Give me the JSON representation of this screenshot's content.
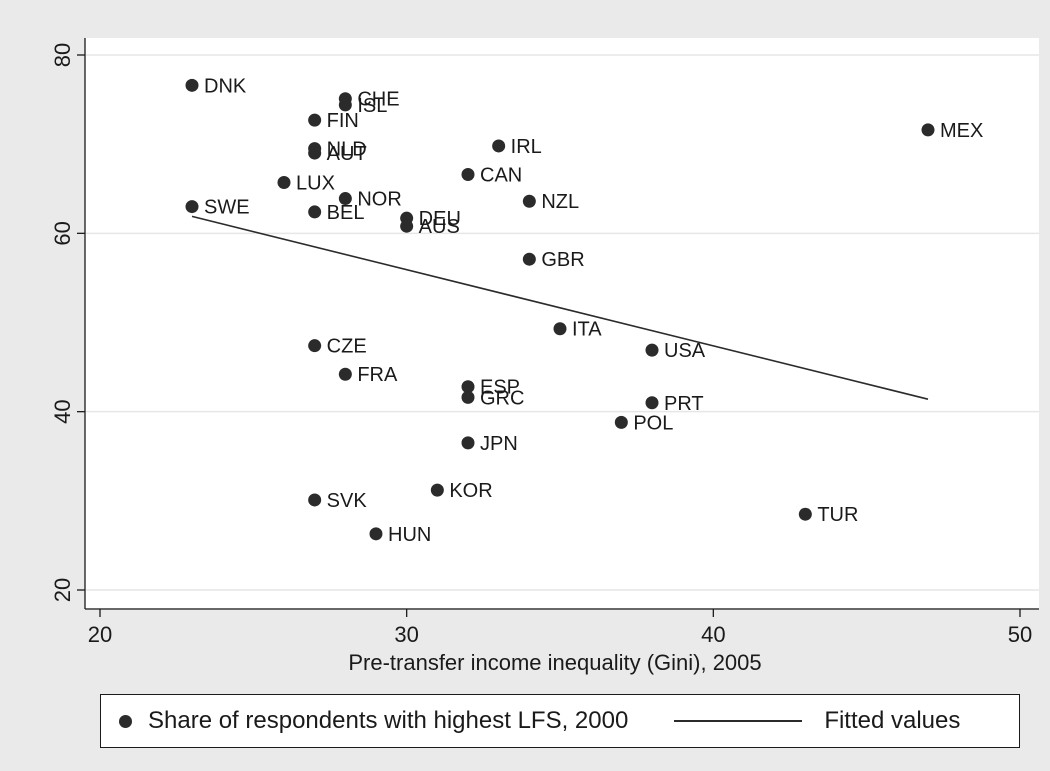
{
  "chart_data": {
    "type": "scatter",
    "title": "",
    "xlabel": "Pre-transfer income inequality (Gini), 2005",
    "ylabel": "",
    "xlim": [
      20,
      50
    ],
    "ylim": [
      20,
      80
    ],
    "xticks": [
      20,
      30,
      40,
      50
    ],
    "yticks": [
      20,
      40,
      60,
      80
    ],
    "grid": "horizontal",
    "legend_position": "bottom",
    "colors": {
      "points": "#2b2b2b",
      "line": "#2b2b2b",
      "plot_bg": "#ffffff",
      "outer_bg": "#eaeaea",
      "grid": "#e6e6e6"
    },
    "series": [
      {
        "name": "Share of respondents with highest LFS, 2000",
        "kind": "scatter",
        "points": [
          {
            "label": "DNK",
            "x": 23,
            "y": 76.6
          },
          {
            "label": "CHE",
            "x": 28,
            "y": 75.1
          },
          {
            "label": "ISL",
            "x": 28,
            "y": 74.4
          },
          {
            "label": "FIN",
            "x": 27,
            "y": 72.7
          },
          {
            "label": "MEX",
            "x": 47,
            "y": 71.6
          },
          {
            "label": "IRL",
            "x": 33,
            "y": 69.8
          },
          {
            "label": "NLD",
            "x": 27,
            "y": 69.5
          },
          {
            "label": "AUT",
            "x": 27,
            "y": 69.0
          },
          {
            "label": "CAN",
            "x": 32,
            "y": 66.6
          },
          {
            "label": "LUX",
            "x": 26,
            "y": 65.7
          },
          {
            "label": "NOR",
            "x": 28,
            "y": 63.9
          },
          {
            "label": "NZL",
            "x": 34,
            "y": 63.6
          },
          {
            "label": "SWE",
            "x": 23,
            "y": 63.0
          },
          {
            "label": "BEL",
            "x": 27,
            "y": 62.4
          },
          {
            "label": "DEU",
            "x": 30,
            "y": 61.7
          },
          {
            "label": "AUS",
            "x": 30,
            "y": 60.8
          },
          {
            "label": "GBR",
            "x": 34,
            "y": 57.1
          },
          {
            "label": "ITA",
            "x": 35,
            "y": 49.3
          },
          {
            "label": "CZE",
            "x": 27,
            "y": 47.4
          },
          {
            "label": "USA",
            "x": 38,
            "y": 46.9
          },
          {
            "label": "FRA",
            "x": 28,
            "y": 44.2
          },
          {
            "label": "ESP",
            "x": 32,
            "y": 42.8
          },
          {
            "label": "GRC",
            "x": 32,
            "y": 41.6
          },
          {
            "label": "PRT",
            "x": 38,
            "y": 41.0
          },
          {
            "label": "POL",
            "x": 37,
            "y": 38.8
          },
          {
            "label": "JPN",
            "x": 32,
            "y": 36.5
          },
          {
            "label": "KOR",
            "x": 31,
            "y": 31.2
          },
          {
            "label": "SVK",
            "x": 27,
            "y": 30.1
          },
          {
            "label": "TUR",
            "x": 43,
            "y": 28.5
          },
          {
            "label": "HUN",
            "x": 29,
            "y": 26.3
          }
        ]
      },
      {
        "name": "Fitted values",
        "kind": "line",
        "points": [
          {
            "x": 23,
            "y": 61.9
          },
          {
            "x": 47,
            "y": 41.4
          }
        ]
      }
    ]
  }
}
